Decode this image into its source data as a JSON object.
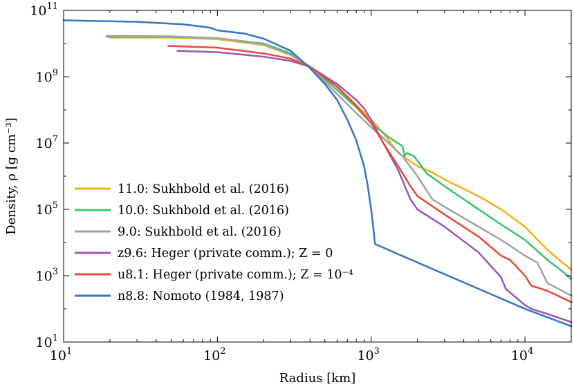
{
  "chart_data": {
    "type": "line",
    "title": "",
    "xlabel": "Radius [km]",
    "ylabel": "Density, ρ [g cm⁻³]",
    "xscale": "log",
    "yscale": "log",
    "xlim": [
      10,
      20000
    ],
    "ylim": [
      10,
      100000000000
    ],
    "grid": false,
    "legend_position": "lower-left",
    "x_ticks": [
      {
        "base": "10",
        "exp": "1"
      },
      {
        "base": "10",
        "exp": "2"
      },
      {
        "base": "10",
        "exp": "3"
      },
      {
        "base": "10",
        "exp": "4"
      }
    ],
    "y_ticks": [
      {
        "base": "10",
        "exp": "1"
      },
      {
        "base": "10",
        "exp": "3"
      },
      {
        "base": "10",
        "exp": "5"
      },
      {
        "base": "10",
        "exp": "7"
      },
      {
        "base": "10",
        "exp": "9"
      },
      {
        "base": "10",
        "exp": "11"
      }
    ],
    "series": [
      {
        "name": "11.0: Sukhbold et al. (2016)",
        "color": "#f5b21b",
        "x": [
          20,
          50,
          100,
          200,
          300,
          400,
          600,
          800,
          1000,
          1200,
          1500,
          2000,
          2500,
          3000,
          5000,
          7000,
          10000,
          14000,
          20000
        ],
        "y": [
          15000000000.0,
          15000000000.0,
          13500000000.0,
          9000000000.0,
          4500000000.0,
          2000000000.0,
          500000000.0,
          140000000.0,
          50000000.0,
          20000000.0,
          5000000.0,
          2000000.0,
          1300000.0,
          800000.0,
          250000.0,
          100000.0,
          30000.0,
          6000.0,
          1500.0
        ]
      },
      {
        "name": "10.0: Sukhbold et al. (2016)",
        "color": "#3fc46c",
        "x": [
          19,
          50,
          100,
          200,
          300,
          400,
          600,
          800,
          1000,
          1300,
          1600,
          1650,
          1700,
          1900,
          2300,
          3000,
          5000,
          7000,
          10000,
          14000,
          17000,
          20000
        ],
        "y": [
          16000000000.0,
          16000000000.0,
          14500000000.0,
          10000000000.0,
          5000000000.0,
          2000000000.0,
          400000000.0,
          120000000.0,
          40000000.0,
          15000000.0,
          8000000.0,
          4000000.0,
          5000000.0,
          4000000.0,
          1200000.0,
          500000.0,
          100000.0,
          35000.0,
          12000.0,
          3000.0,
          1500.0,
          800.0
        ]
      },
      {
        "name": "9.0: Sukhbold et al. (2016)",
        "color": "#9ea5a3",
        "x": [
          19,
          50,
          100,
          200,
          300,
          400,
          600,
          800,
          1000,
          1300,
          1600,
          2000,
          2500,
          3000,
          5000,
          7000,
          10000,
          12000,
          14000,
          20000
        ],
        "y": [
          17000000000.0,
          16500000000.0,
          14500000000.0,
          9500000000.0,
          4500000000.0,
          2000000000.0,
          300000000.0,
          80000000.0,
          30000000.0,
          10000000.0,
          4000000.0,
          1000000.0,
          200000.0,
          120000.0,
          30000.0,
          12000.0,
          4000.0,
          2500.0,
          600.0,
          250.0
        ]
      },
      {
        "name": "z9.6: Heger (private comm.); Z = 0",
        "color": "#9b59b6",
        "x": [
          55,
          100,
          200,
          300,
          400,
          600,
          800,
          900,
          1000,
          1200,
          1500,
          1800,
          2000,
          3000,
          5000,
          7000,
          7500,
          10000,
          11000,
          14000,
          20000
        ],
        "y": [
          6000000000.0,
          5500000000.0,
          4000000000.0,
          3000000000.0,
          2000000000.0,
          600000000.0,
          200000000.0,
          110000000.0,
          50000000.0,
          10000000.0,
          1500000.0,
          200000.0,
          100000.0,
          30000.0,
          5000.0,
          900.0,
          400.0,
          130.0,
          100.0,
          70.0,
          40.0
        ]
      },
      {
        "name": "u8.1: Heger (private comm.); Z = 10⁻⁴",
        "color": "#e74c3c",
        "x": [
          48,
          100,
          200,
          300,
          400,
          600,
          800,
          1000,
          1200,
          1500,
          1800,
          2000,
          3000,
          5000,
          7000,
          8000,
          10000,
          11000,
          14000,
          20000
        ],
        "y": [
          8500000000.0,
          7500000000.0,
          5000000000.0,
          3500000000.0,
          2000000000.0,
          500000000.0,
          130000000.0,
          40000000.0,
          10000000.0,
          2000000.0,
          500000.0,
          250000.0,
          70000.0,
          15000.0,
          4000.0,
          3000.0,
          1000.0,
          500.0,
          350.0,
          160.0
        ]
      },
      {
        "name": "n8.8: Nomoto (1984, 1987)",
        "color": "#3a78c4",
        "x": [
          10,
          30,
          60,
          90,
          100,
          150,
          200,
          300,
          400,
          500,
          600,
          700,
          800,
          900,
          950,
          1000,
          1030,
          1060,
          2000,
          5000,
          10000,
          20000
        ],
        "y": [
          50000000000.0,
          45000000000.0,
          38000000000.0,
          30000000000.0,
          25000000000.0,
          20000000000.0,
          14000000000.0,
          6000000000.0,
          1800000000.0,
          600000000.0,
          200000000.0,
          50000000.0,
          12000000.0,
          2000000.0,
          500000.0,
          100000.0,
          30000.0,
          9000.0,
          2500.0,
          400.0,
          100.0,
          30.0
        ]
      }
    ]
  }
}
